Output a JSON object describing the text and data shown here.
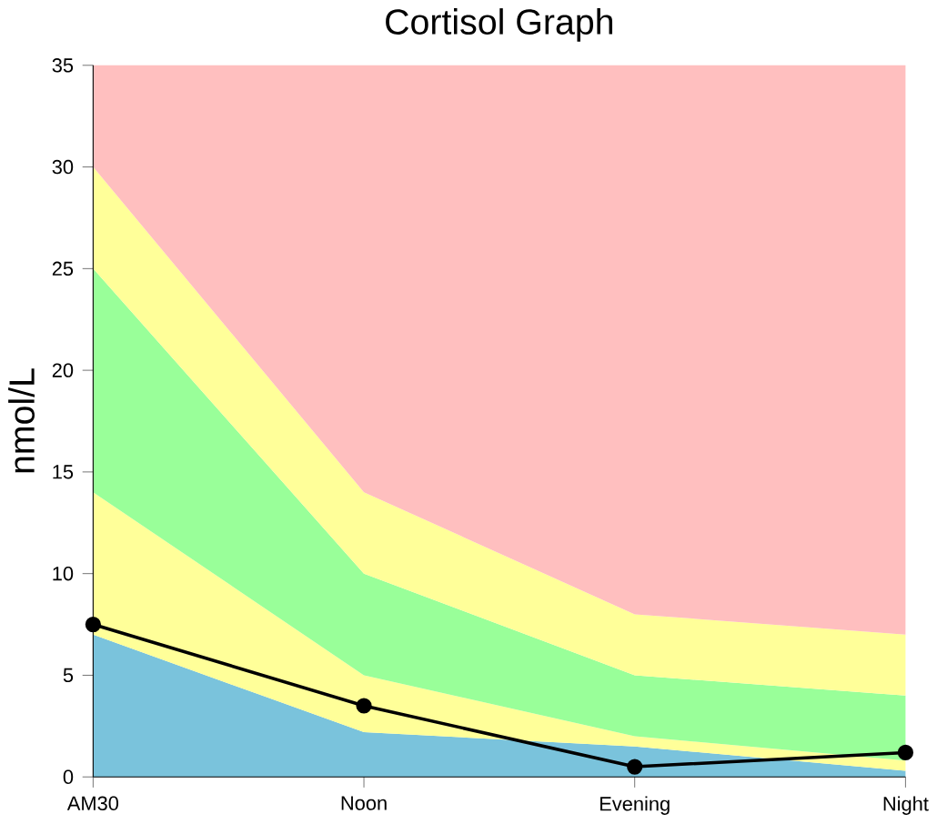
{
  "chart_data": {
    "type": "area",
    "title": "Cortisol Graph",
    "ylabel": "nmol/L",
    "categories": [
      "AM30",
      "Noon",
      "Evening",
      "Night"
    ],
    "stacked": true,
    "ylim": [
      0,
      35
    ],
    "yticks": [
      0,
      5,
      10,
      15,
      20,
      25,
      30,
      35
    ],
    "series": [
      {
        "color": "#7ac3dc",
        "values": [
          7,
          2.2,
          1.5,
          0.3
        ]
      },
      {
        "color": "#ffff99",
        "values": [
          7,
          2.8,
          0.5,
          0.5
        ]
      },
      {
        "color": "#99ff99",
        "values": [
          11,
          5,
          3,
          3.2
        ]
      },
      {
        "color": "#ffff99",
        "values": [
          5,
          4,
          3,
          3
        ]
      },
      {
        "color": "#ffbfbf",
        "values": [
          5,
          21,
          27,
          28
        ]
      },
      {
        "type": "line",
        "color": "#000000",
        "marker": "circle",
        "line_style": "solid",
        "values": [
          7.5,
          3.5,
          0.5,
          1.2
        ]
      }
    ]
  }
}
